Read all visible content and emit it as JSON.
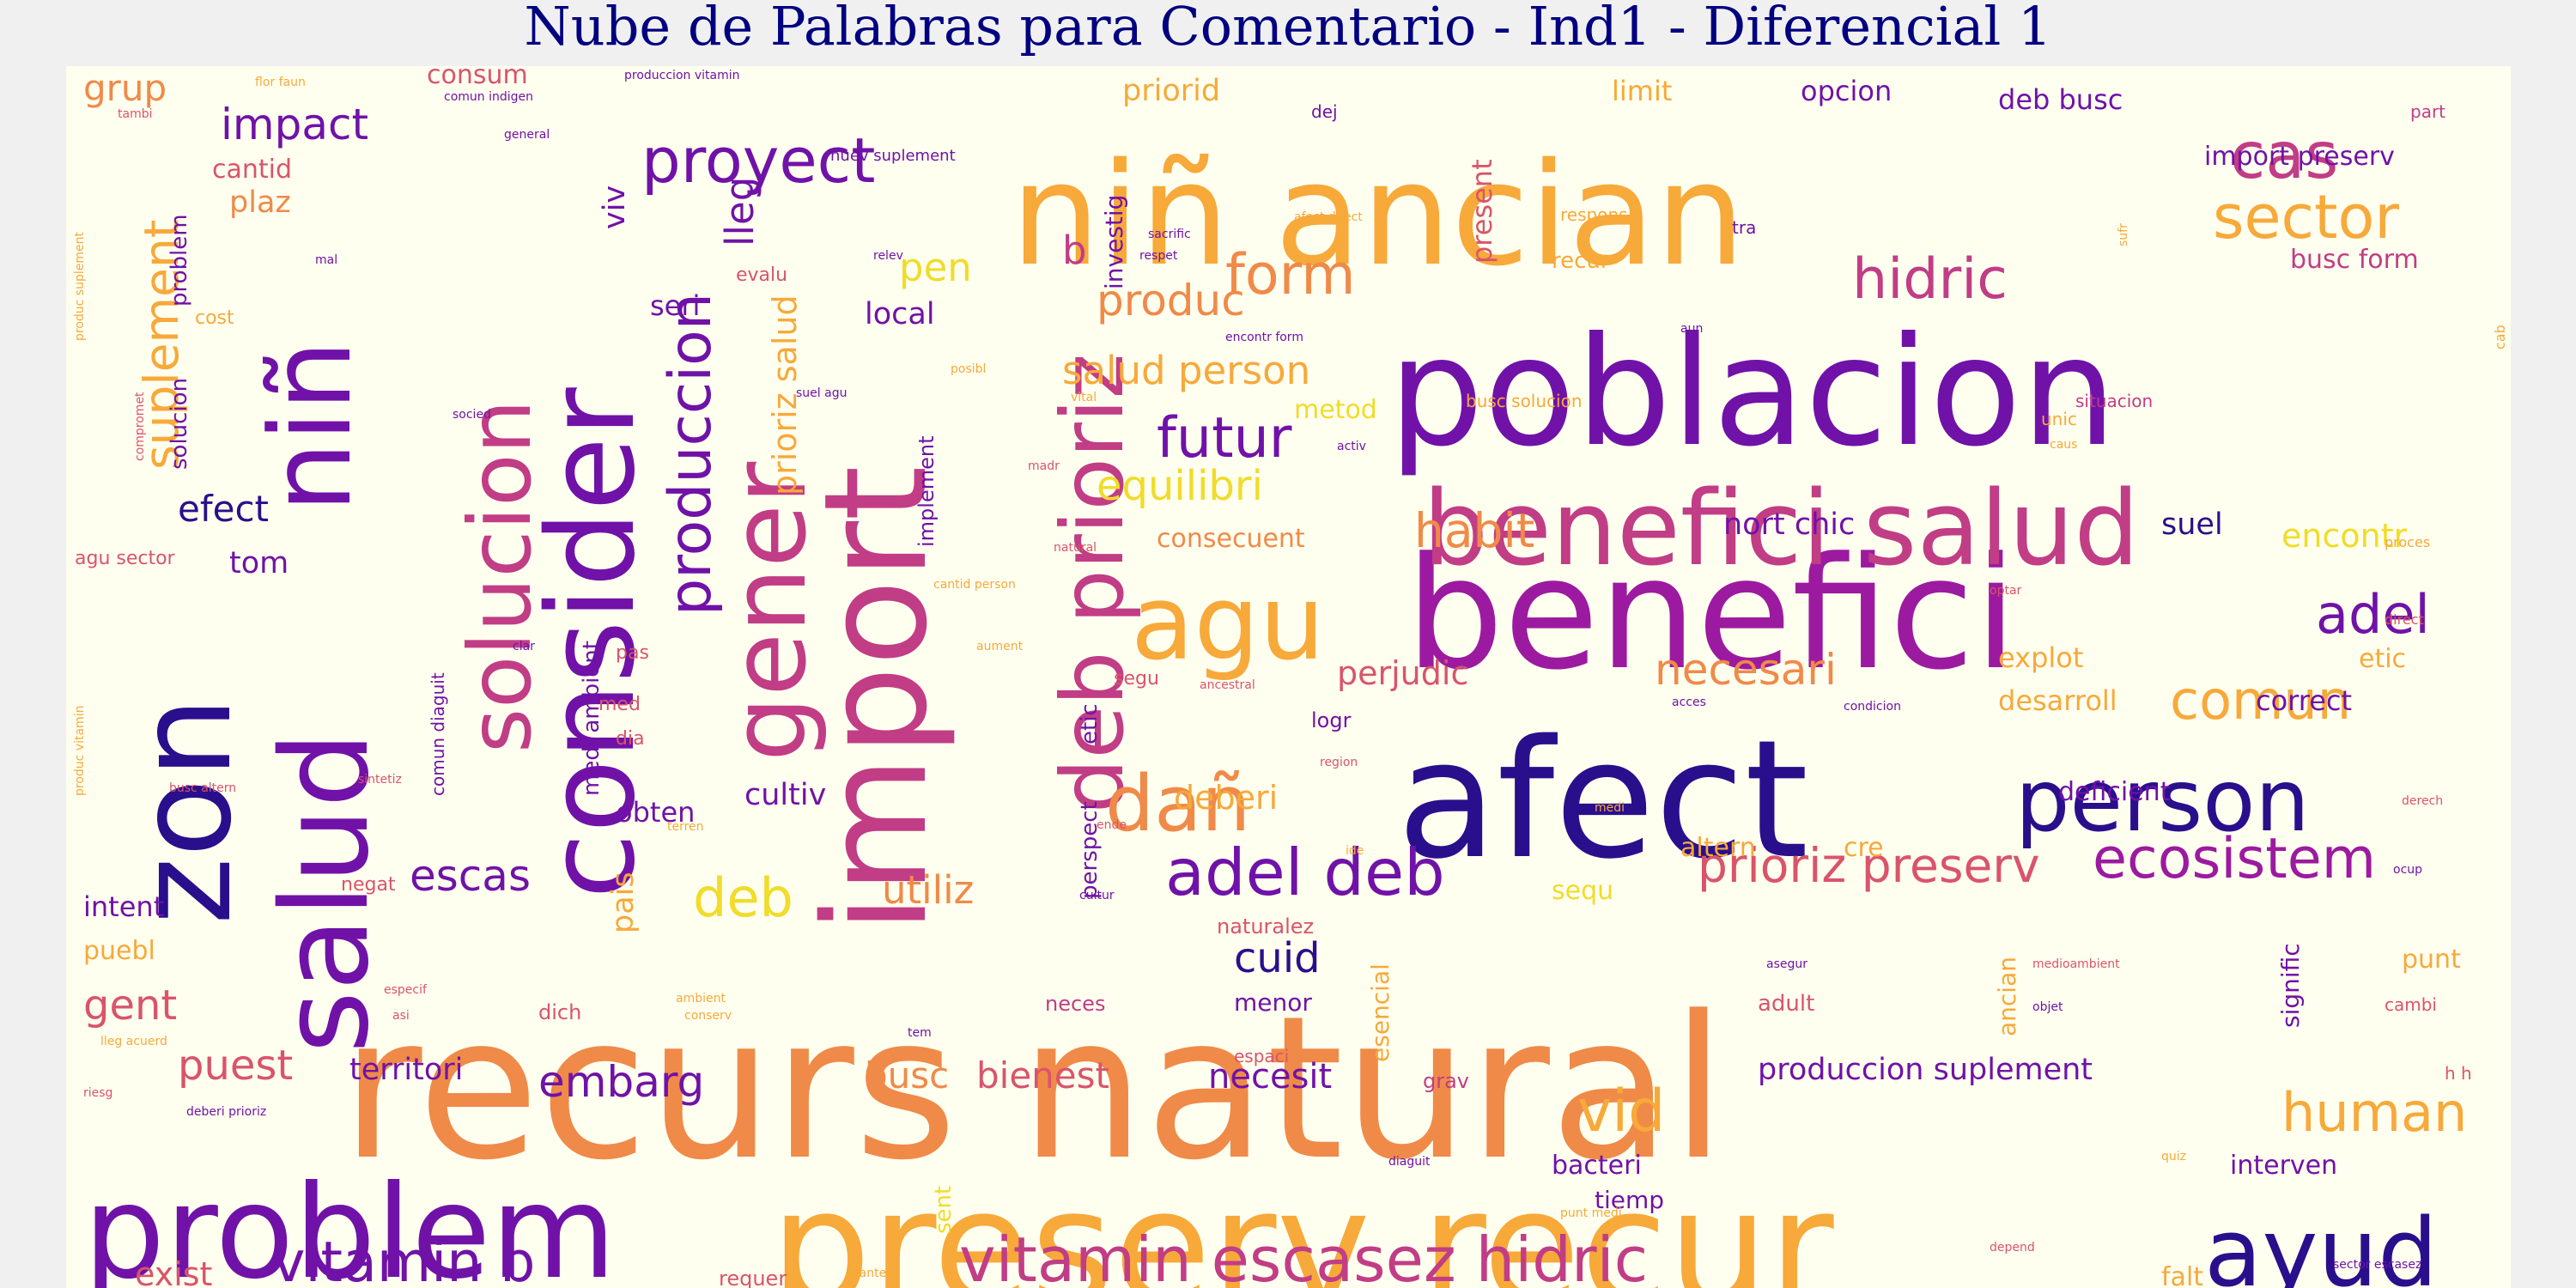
{
  "title": "Nube de Palabras para Comentario - Ind1 - Diferencial 1",
  "colors": {
    "title": "#000080",
    "background": "#fffff0",
    "page": "#f0f0f0",
    "palette": "plasma",
    "dark_blue": "#2a0f8c",
    "purple": "#7012a8",
    "magenta": "#9c1aa0",
    "pink": "#c13d85",
    "salmon": "#d9546b",
    "orange": "#f08a48",
    "amber": "#f7a93a",
    "yellow": "#f0dc2a"
  },
  "words": [
    {
      "text": "recurs natural",
      "color": "orange",
      "weight": 230
    },
    {
      "text": "preserv recur",
      "color": "amber",
      "weight": 185
    },
    {
      "text": "afect",
      "color": "dark_blue",
      "weight": 190
    },
    {
      "text": "benefici",
      "color": "magenta",
      "weight": 180
    },
    {
      "text": "poblacion",
      "color": "purple",
      "weight": 175
    },
    {
      "text": "niñ ancian",
      "color": "amber",
      "weight": 165
    },
    {
      "text": "import",
      "color": "pink",
      "weight": 165
    },
    {
      "text": "problem",
      "color": "purple",
      "weight": 150
    },
    {
      "text": "zon",
      "color": "dark_blue",
      "weight": 150
    },
    {
      "text": "salud",
      "color": "purple",
      "weight": 140
    },
    {
      "text": "consider",
      "color": "purple",
      "weight": 140
    },
    {
      "text": "niñ",
      "color": "purple",
      "weight": 130
    },
    {
      "text": "benefici salud",
      "color": "pink",
      "weight": 120
    },
    {
      "text": "agu",
      "color": "amber",
      "weight": 120
    },
    {
      "text": "gener",
      "color": "pink",
      "weight": 120
    },
    {
      "text": "solucion",
      "color": "pink",
      "weight": 100
    },
    {
      "text": "deb prioriz",
      "color": "pink",
      "weight": 100
    },
    {
      "text": "ayud",
      "color": "dark_blue",
      "weight": 110
    },
    {
      "text": "person",
      "color": "dark_blue",
      "weight": 100
    },
    {
      "text": "dañ",
      "color": "orange",
      "weight": 90
    },
    {
      "text": "cas",
      "color": "pink",
      "weight": 75
    },
    {
      "text": "sector",
      "color": "amber",
      "weight": 70
    },
    {
      "text": "proyect",
      "color": "purple",
      "weight": 72
    },
    {
      "text": "produccion",
      "color": "purple",
      "weight": 68
    },
    {
      "text": "vitamin escasez hidric",
      "color": "pink",
      "weight": 72
    },
    {
      "text": "vitamin b",
      "color": "purple",
      "weight": 65
    },
    {
      "text": "adel deb",
      "color": "purple",
      "weight": 75
    },
    {
      "text": "ecosistem",
      "color": "magenta",
      "weight": 65
    },
    {
      "text": "human",
      "color": "amber",
      "weight": 62
    },
    {
      "text": "vid",
      "color": "amber",
      "weight": 68
    },
    {
      "text": "futur",
      "color": "purple",
      "weight": 65
    },
    {
      "text": "form",
      "color": "orange",
      "weight": 65
    },
    {
      "text": "hidric",
      "color": "pink",
      "weight": 65
    },
    {
      "text": "adel",
      "color": "purple",
      "weight": 62
    },
    {
      "text": "comun",
      "color": "amber",
      "weight": 62
    },
    {
      "text": "habit",
      "color": "orange",
      "weight": 55
    },
    {
      "text": "prioriz preserv",
      "color": "salmon",
      "weight": 55
    },
    {
      "text": "deb",
      "color": "yellow",
      "weight": 62
    },
    {
      "text": "suplement",
      "color": "amber",
      "weight": 55
    },
    {
      "text": "salud person",
      "color": "amber",
      "weight": 45
    },
    {
      "text": "equilibri",
      "color": "yellow",
      "weight": 48
    },
    {
      "text": "impact",
      "color": "purple",
      "weight": 50
    },
    {
      "text": "necesari",
      "color": "orange",
      "weight": 50
    },
    {
      "text": "produc",
      "color": "orange",
      "weight": 50
    },
    {
      "text": "embarg",
      "color": "purple",
      "weight": 50
    },
    {
      "text": "escas",
      "color": "purple",
      "weight": 50
    },
    {
      "text": "utiliz",
      "color": "orange",
      "weight": 45
    },
    {
      "text": "gent",
      "color": "salmon",
      "weight": 48
    },
    {
      "text": "puest",
      "color": "salmon",
      "weight": 48
    },
    {
      "text": "pen",
      "color": "yellow",
      "weight": 45
    },
    {
      "text": "cuid",
      "color": "dark_blue",
      "weight": 48
    },
    {
      "text": "efect",
      "color": "dark_blue",
      "weight": 42
    },
    {
      "text": "lleg",
      "color": "purple",
      "weight": 45
    },
    {
      "text": "prioriz salud",
      "color": "amber",
      "weight": 38
    },
    {
      "text": "grup",
      "color": "orange",
      "weight": 42
    },
    {
      "text": "perjudic",
      "color": "salmon",
      "weight": 38
    },
    {
      "text": "busc",
      "color": "orange",
      "weight": 42
    },
    {
      "text": "bienest",
      "color": "salmon",
      "weight": 42
    },
    {
      "text": "necesit",
      "color": "purple",
      "weight": 40
    },
    {
      "text": "territori",
      "color": "purple",
      "weight": 35
    },
    {
      "text": "produccion suplement",
      "color": "purple",
      "weight": 35
    },
    {
      "text": "exist",
      "color": "salmon",
      "weight": 38
    },
    {
      "text": "deb busc",
      "color": "purple",
      "weight": 32
    },
    {
      "text": "import preserv",
      "color": "purple",
      "weight": 30
    },
    {
      "text": "busc form",
      "color": "pink",
      "weight": 30
    },
    {
      "text": "encontr",
      "color": "yellow",
      "weight": 38
    },
    {
      "text": "suel",
      "color": "dark_blue",
      "weight": 35
    },
    {
      "text": "nort chic",
      "color": "purple",
      "weight": 35
    },
    {
      "text": "deberi",
      "color": "amber",
      "weight": 38
    },
    {
      "text": "desarroll",
      "color": "amber",
      "weight": 32
    },
    {
      "text": "explot",
      "color": "amber",
      "weight": 32
    },
    {
      "text": "correct",
      "color": "purple",
      "weight": 32
    },
    {
      "text": "deficient",
      "color": "purple",
      "weight": 30
    },
    {
      "text": "priorid",
      "color": "amber",
      "weight": 35
    },
    {
      "text": "limit",
      "color": "amber",
      "weight": 32
    },
    {
      "text": "opcion",
      "color": "purple",
      "weight": 32
    },
    {
      "text": "present",
      "color": "salmon",
      "weight": 32
    },
    {
      "text": "investig",
      "color": "purple",
      "weight": 28
    },
    {
      "text": "consecuent",
      "color": "orange",
      "weight": 30
    },
    {
      "text": "metod",
      "color": "yellow",
      "weight": 30
    },
    {
      "text": "local",
      "color": "purple",
      "weight": 35
    },
    {
      "text": "seri",
      "color": "purple",
      "weight": 32
    },
    {
      "text": "cantid",
      "color": "salmon",
      "weight": 30
    },
    {
      "text": "plaz",
      "color": "orange",
      "weight": 35
    },
    {
      "text": "viv",
      "color": "purple",
      "weight": 35
    },
    {
      "text": "consum",
      "color": "salmon",
      "weight": 30
    },
    {
      "text": "tom",
      "color": "purple",
      "weight": 35
    },
    {
      "text": "cultiv",
      "color": "purple",
      "weight": 35
    },
    {
      "text": "obten",
      "color": "purple",
      "weight": 32
    },
    {
      "text": "pais",
      "color": "amber",
      "weight": 35
    },
    {
      "text": "intent",
      "color": "purple",
      "weight": 32
    },
    {
      "text": "puebl",
      "color": "amber",
      "weight": 30
    },
    {
      "text": "sequ",
      "color": "yellow",
      "weight": 30
    },
    {
      "text": "altern",
      "color": "amber",
      "weight": 30
    },
    {
      "text": "cre",
      "color": "amber",
      "weight": 30
    },
    {
      "text": "etic",
      "color": "amber",
      "weight": 30
    },
    {
      "text": "punt",
      "color": "amber",
      "weight": 30
    },
    {
      "text": "signific",
      "color": "purple",
      "weight": 28
    },
    {
      "text": "ancian",
      "color": "amber",
      "weight": 28
    },
    {
      "text": "adult",
      "color": "salmon",
      "weight": 26
    },
    {
      "text": "interven",
      "color": "purple",
      "weight": 30
    },
    {
      "text": "bacteri",
      "color": "purple",
      "weight": 30
    },
    {
      "text": "tiemp",
      "color": "purple",
      "weight": 28
    },
    {
      "text": "menor",
      "color": "purple",
      "weight": 28
    },
    {
      "text": "neces",
      "color": "pink",
      "weight": 24
    },
    {
      "text": "sent",
      "color": "yellow",
      "weight": 26
    },
    {
      "text": "esencial",
      "color": "amber",
      "weight": 28
    },
    {
      "text": "falt",
      "color": "amber",
      "weight": 30
    },
    {
      "text": "requer",
      "color": "salmon",
      "weight": 24
    },
    {
      "text": "grav",
      "color": "pink",
      "weight": 24
    },
    {
      "text": "dich",
      "color": "salmon",
      "weight": 24
    },
    {
      "text": "naturalez",
      "color": "salmon",
      "weight": 24
    },
    {
      "text": "medi ambient",
      "color": "purple",
      "weight": 26
    },
    {
      "text": "perspect",
      "color": "purple",
      "weight": 26
    },
    {
      "text": "etic",
      "color": "purple",
      "weight": 26
    },
    {
      "text": "logr",
      "color": "purple",
      "weight": 24
    },
    {
      "text": "segu",
      "color": "salmon",
      "weight": 22
    },
    {
      "text": "solucion",
      "color": "purple",
      "weight": 26
    },
    {
      "text": "problem",
      "color": "purple",
      "weight": 26
    },
    {
      "text": "implement",
      "color": "purple",
      "weight": 24
    },
    {
      "text": "evalu",
      "color": "salmon",
      "weight": 22
    },
    {
      "text": "comun diaguit",
      "color": "purple",
      "weight": 20
    },
    {
      "text": "agu sector",
      "color": "salmon",
      "weight": 22
    },
    {
      "text": "cost",
      "color": "amber",
      "weight": 22
    },
    {
      "text": "med",
      "color": "salmon",
      "weight": 22
    },
    {
      "text": "dia",
      "color": "salmon",
      "weight": 22
    },
    {
      "text": "pas",
      "color": "salmon",
      "weight": 22
    },
    {
      "text": "negat",
      "color": "salmon",
      "weight": 22
    },
    {
      "text": "b",
      "color": "pink",
      "weight": 45
    },
    {
      "text": "respons",
      "color": "amber",
      "weight": 20
    },
    {
      "text": "recur",
      "color": "amber",
      "weight": 26
    },
    {
      "text": "tra",
      "color": "purple",
      "weight": 20
    },
    {
      "text": "part",
      "color": "pink",
      "weight": 20
    },
    {
      "text": "unic",
      "color": "amber",
      "weight": 20
    },
    {
      "text": "situacion",
      "color": "pink",
      "weight": 20
    },
    {
      "text": "busc solucion",
      "color": "amber",
      "weight": 20
    },
    {
      "text": "h h",
      "color": "salmon",
      "weight": 20
    },
    {
      "text": "cambi",
      "color": "salmon",
      "weight": 20
    },
    {
      "text": "espaci",
      "color": "salmon",
      "weight": 20
    },
    {
      "text": "dej",
      "color": "purple",
      "weight": 20
    },
    {
      "text": "nuev suplement",
      "color": "purple",
      "weight": 18
    },
    {
      "text": "proces",
      "color": "amber",
      "weight": 16
    },
    {
      "text": "direct",
      "color": "salmon",
      "weight": 16
    },
    {
      "text": "cab",
      "color": "amber",
      "weight": 16
    },
    {
      "text": "sufr",
      "color": "amber",
      "weight": 14
    },
    {
      "text": "aun",
      "color": "purple",
      "weight": 14
    },
    {
      "text": "encontr form",
      "color": "purple",
      "weight": 14
    },
    {
      "text": "afect direct",
      "color": "amber",
      "weight": 14
    },
    {
      "text": "sacrific",
      "color": "purple",
      "weight": 14
    },
    {
      "text": "respet",
      "color": "purple",
      "weight": 14
    },
    {
      "text": "relev",
      "color": "purple",
      "weight": 14
    },
    {
      "text": "suel agu",
      "color": "purple",
      "weight": 14
    },
    {
      "text": "vital",
      "color": "amber",
      "weight": 14
    },
    {
      "text": "activ",
      "color": "purple",
      "weight": 14
    },
    {
      "text": "caus",
      "color": "amber",
      "weight": 14
    },
    {
      "text": "optar",
      "color": "salmon",
      "weight": 14
    },
    {
      "text": "posibl",
      "color": "amber",
      "weight": 14
    },
    {
      "text": "madr",
      "color": "salmon",
      "weight": 14
    },
    {
      "text": "natural",
      "color": "salmon",
      "weight": 14
    },
    {
      "text": "cantid person",
      "color": "amber",
      "weight": 14
    },
    {
      "text": "aument",
      "color": "amber",
      "weight": 14
    },
    {
      "text": "ancestral",
      "color": "salmon",
      "weight": 14
    },
    {
      "text": "acces",
      "color": "purple",
      "weight": 14
    },
    {
      "text": "condicion",
      "color": "purple",
      "weight": 14
    },
    {
      "text": "region",
      "color": "salmon",
      "weight": 14
    },
    {
      "text": "medi",
      "color": "amber",
      "weight": 14
    },
    {
      "text": "derech",
      "color": "salmon",
      "weight": 14
    },
    {
      "text": "ocup",
      "color": "purple",
      "weight": 14
    },
    {
      "text": "ide",
      "color": "amber",
      "weight": 14
    },
    {
      "text": "cultur",
      "color": "purple",
      "weight": 14
    },
    {
      "text": "ende",
      "color": "salmon",
      "weight": 14
    },
    {
      "text": "terren",
      "color": "amber",
      "weight": 14
    },
    {
      "text": "asegur",
      "color": "purple",
      "weight": 14
    },
    {
      "text": "medioambient",
      "color": "salmon",
      "weight": 14
    },
    {
      "text": "objet",
      "color": "purple",
      "weight": 14
    },
    {
      "text": "quiz",
      "color": "amber",
      "weight": 14
    },
    {
      "text": "diaguit",
      "color": "purple",
      "weight": 14
    },
    {
      "text": "punt medi",
      "color": "amber",
      "weight": 14
    },
    {
      "text": "depend",
      "color": "salmon",
      "weight": 14
    },
    {
      "text": "sector escasez",
      "color": "purple",
      "weight": 14
    },
    {
      "text": "manten",
      "color": "amber",
      "weight": 14
    },
    {
      "text": "tem",
      "color": "purple",
      "weight": 14
    },
    {
      "text": "ambient",
      "color": "amber",
      "weight": 14
    },
    {
      "text": "conserv",
      "color": "amber",
      "weight": 14
    },
    {
      "text": "lleg acuerd",
      "color": "amber",
      "weight": 14
    },
    {
      "text": "asi",
      "color": "salmon",
      "weight": 14
    },
    {
      "text": "especif",
      "color": "salmon",
      "weight": 14
    },
    {
      "text": "riesg",
      "color": "salmon",
      "weight": 14
    },
    {
      "text": "deberi prioriz",
      "color": "purple",
      "weight": 14
    },
    {
      "text": "sintetiz",
      "color": "salmon",
      "weight": 14
    },
    {
      "text": "busc altern",
      "color": "salmon",
      "weight": 14
    },
    {
      "text": "produc vitamin",
      "color": "amber",
      "weight": 14
    },
    {
      "text": "clar",
      "color": "purple",
      "weight": 14
    },
    {
      "text": "socied",
      "color": "purple",
      "weight": 14
    },
    {
      "text": "compromet",
      "color": "salmon",
      "weight": 14
    },
    {
      "text": "mal",
      "color": "purple",
      "weight": 14
    },
    {
      "text": "produc suplement",
      "color": "amber",
      "weight": 14
    },
    {
      "text": "tambi",
      "color": "salmon",
      "weight": 14
    },
    {
      "text": "general",
      "color": "purple",
      "weight": 14
    },
    {
      "text": "comun indigen",
      "color": "purple",
      "weight": 14
    },
    {
      "text": "flor faun",
      "color": "amber",
      "weight": 14
    },
    {
      "text": "produccion vitamin",
      "color": "purple",
      "weight": 14
    }
  ]
}
